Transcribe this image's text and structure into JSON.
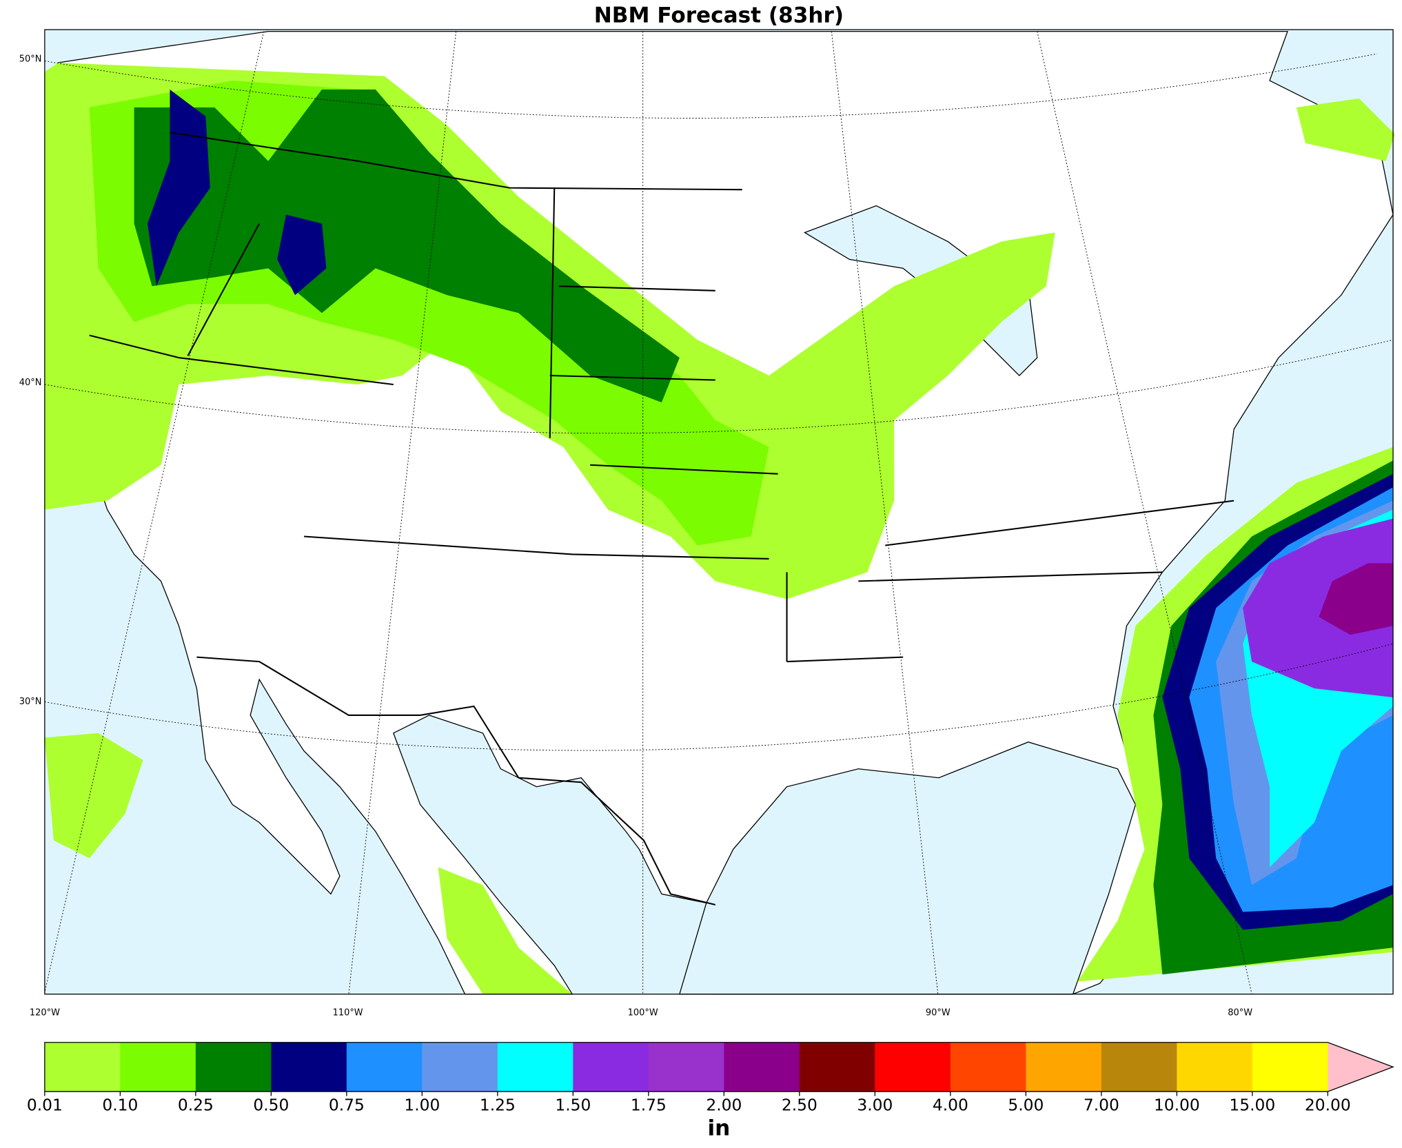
{
  "title": "NBM Forecast (83hr)",
  "map": {
    "lat_labels": [
      "50°N",
      "40°N",
      "30°N"
    ],
    "lon_labels": [
      "120°W",
      "110°W",
      "100°W",
      "90°W",
      "80°W"
    ]
  },
  "colorbar": {
    "label": "in",
    "levels": [
      0.01,
      {
        "value": 0.1,
        "label": "0.10"
      },
      0.25,
      {
        "value": 0.5,
        "label": "0.50"
      },
      0.75,
      {
        "value": 1,
        "label": "1.00"
      },
      1.25,
      {
        "value": 1.5,
        "label": "1.50"
      },
      1.75,
      {
        "value": 2,
        "label": "2.00"
      },
      {
        "value": 2.5,
        "label": "2.50"
      },
      {
        "value": 3,
        "label": "3.00"
      },
      {
        "value": 4,
        "label": "4.00"
      },
      {
        "value": 5,
        "label": "5.00"
      },
      {
        "value": 7,
        "label": "7.00"
      },
      {
        "value": 10,
        "label": "10.00"
      },
      {
        "value": 15,
        "label": "15.00"
      },
      {
        "value": 20,
        "label": "20.00"
      }
    ],
    "colors": [
      "#adff2f",
      "#7cfc00",
      "#008000",
      "#000080",
      "#1e90ff",
      "#6495ed",
      "#00ffff",
      "#8a2be2",
      "#9932cc",
      "#8b008b",
      "#800000",
      "#ff0000",
      "#ff4500",
      "#ffa500",
      "#b8860b",
      "#ffd700",
      "#ffff00"
    ],
    "extend_color": "#ffc0cb"
  }
}
